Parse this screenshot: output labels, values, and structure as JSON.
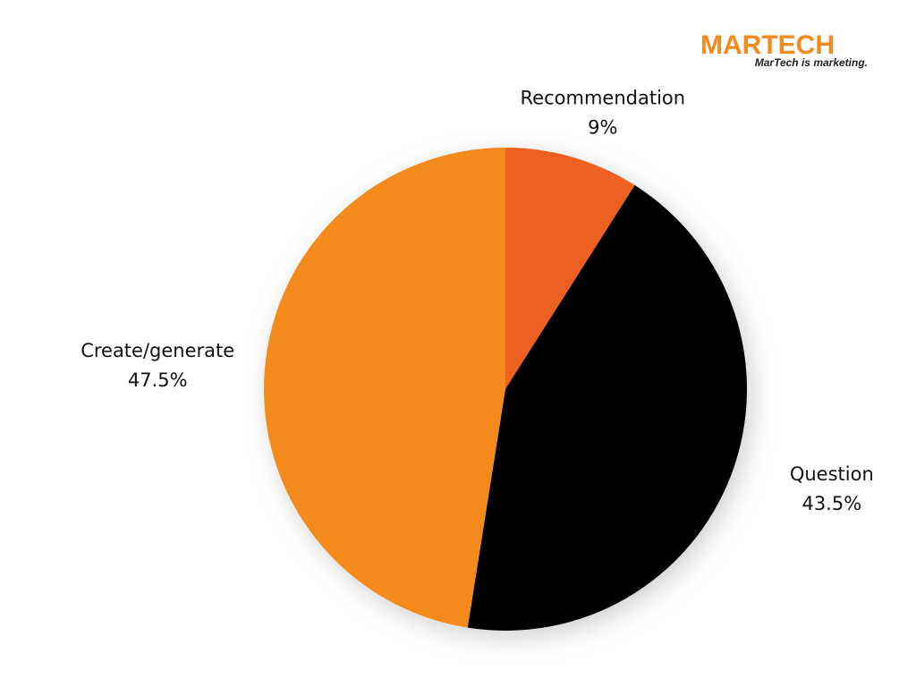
{
  "logo": {
    "name": "MARTECH",
    "tagline": "MarTech is marketing."
  },
  "chart_data": {
    "type": "pie",
    "categories": [
      "Recommendation",
      "Question",
      "Create/generate"
    ],
    "values": [
      9,
      43.5,
      47.5
    ],
    "value_labels": [
      "9%",
      "43.5%",
      "47.5%"
    ],
    "colors": [
      "#ee5f22",
      "#000000",
      "#f58a1f"
    ]
  }
}
